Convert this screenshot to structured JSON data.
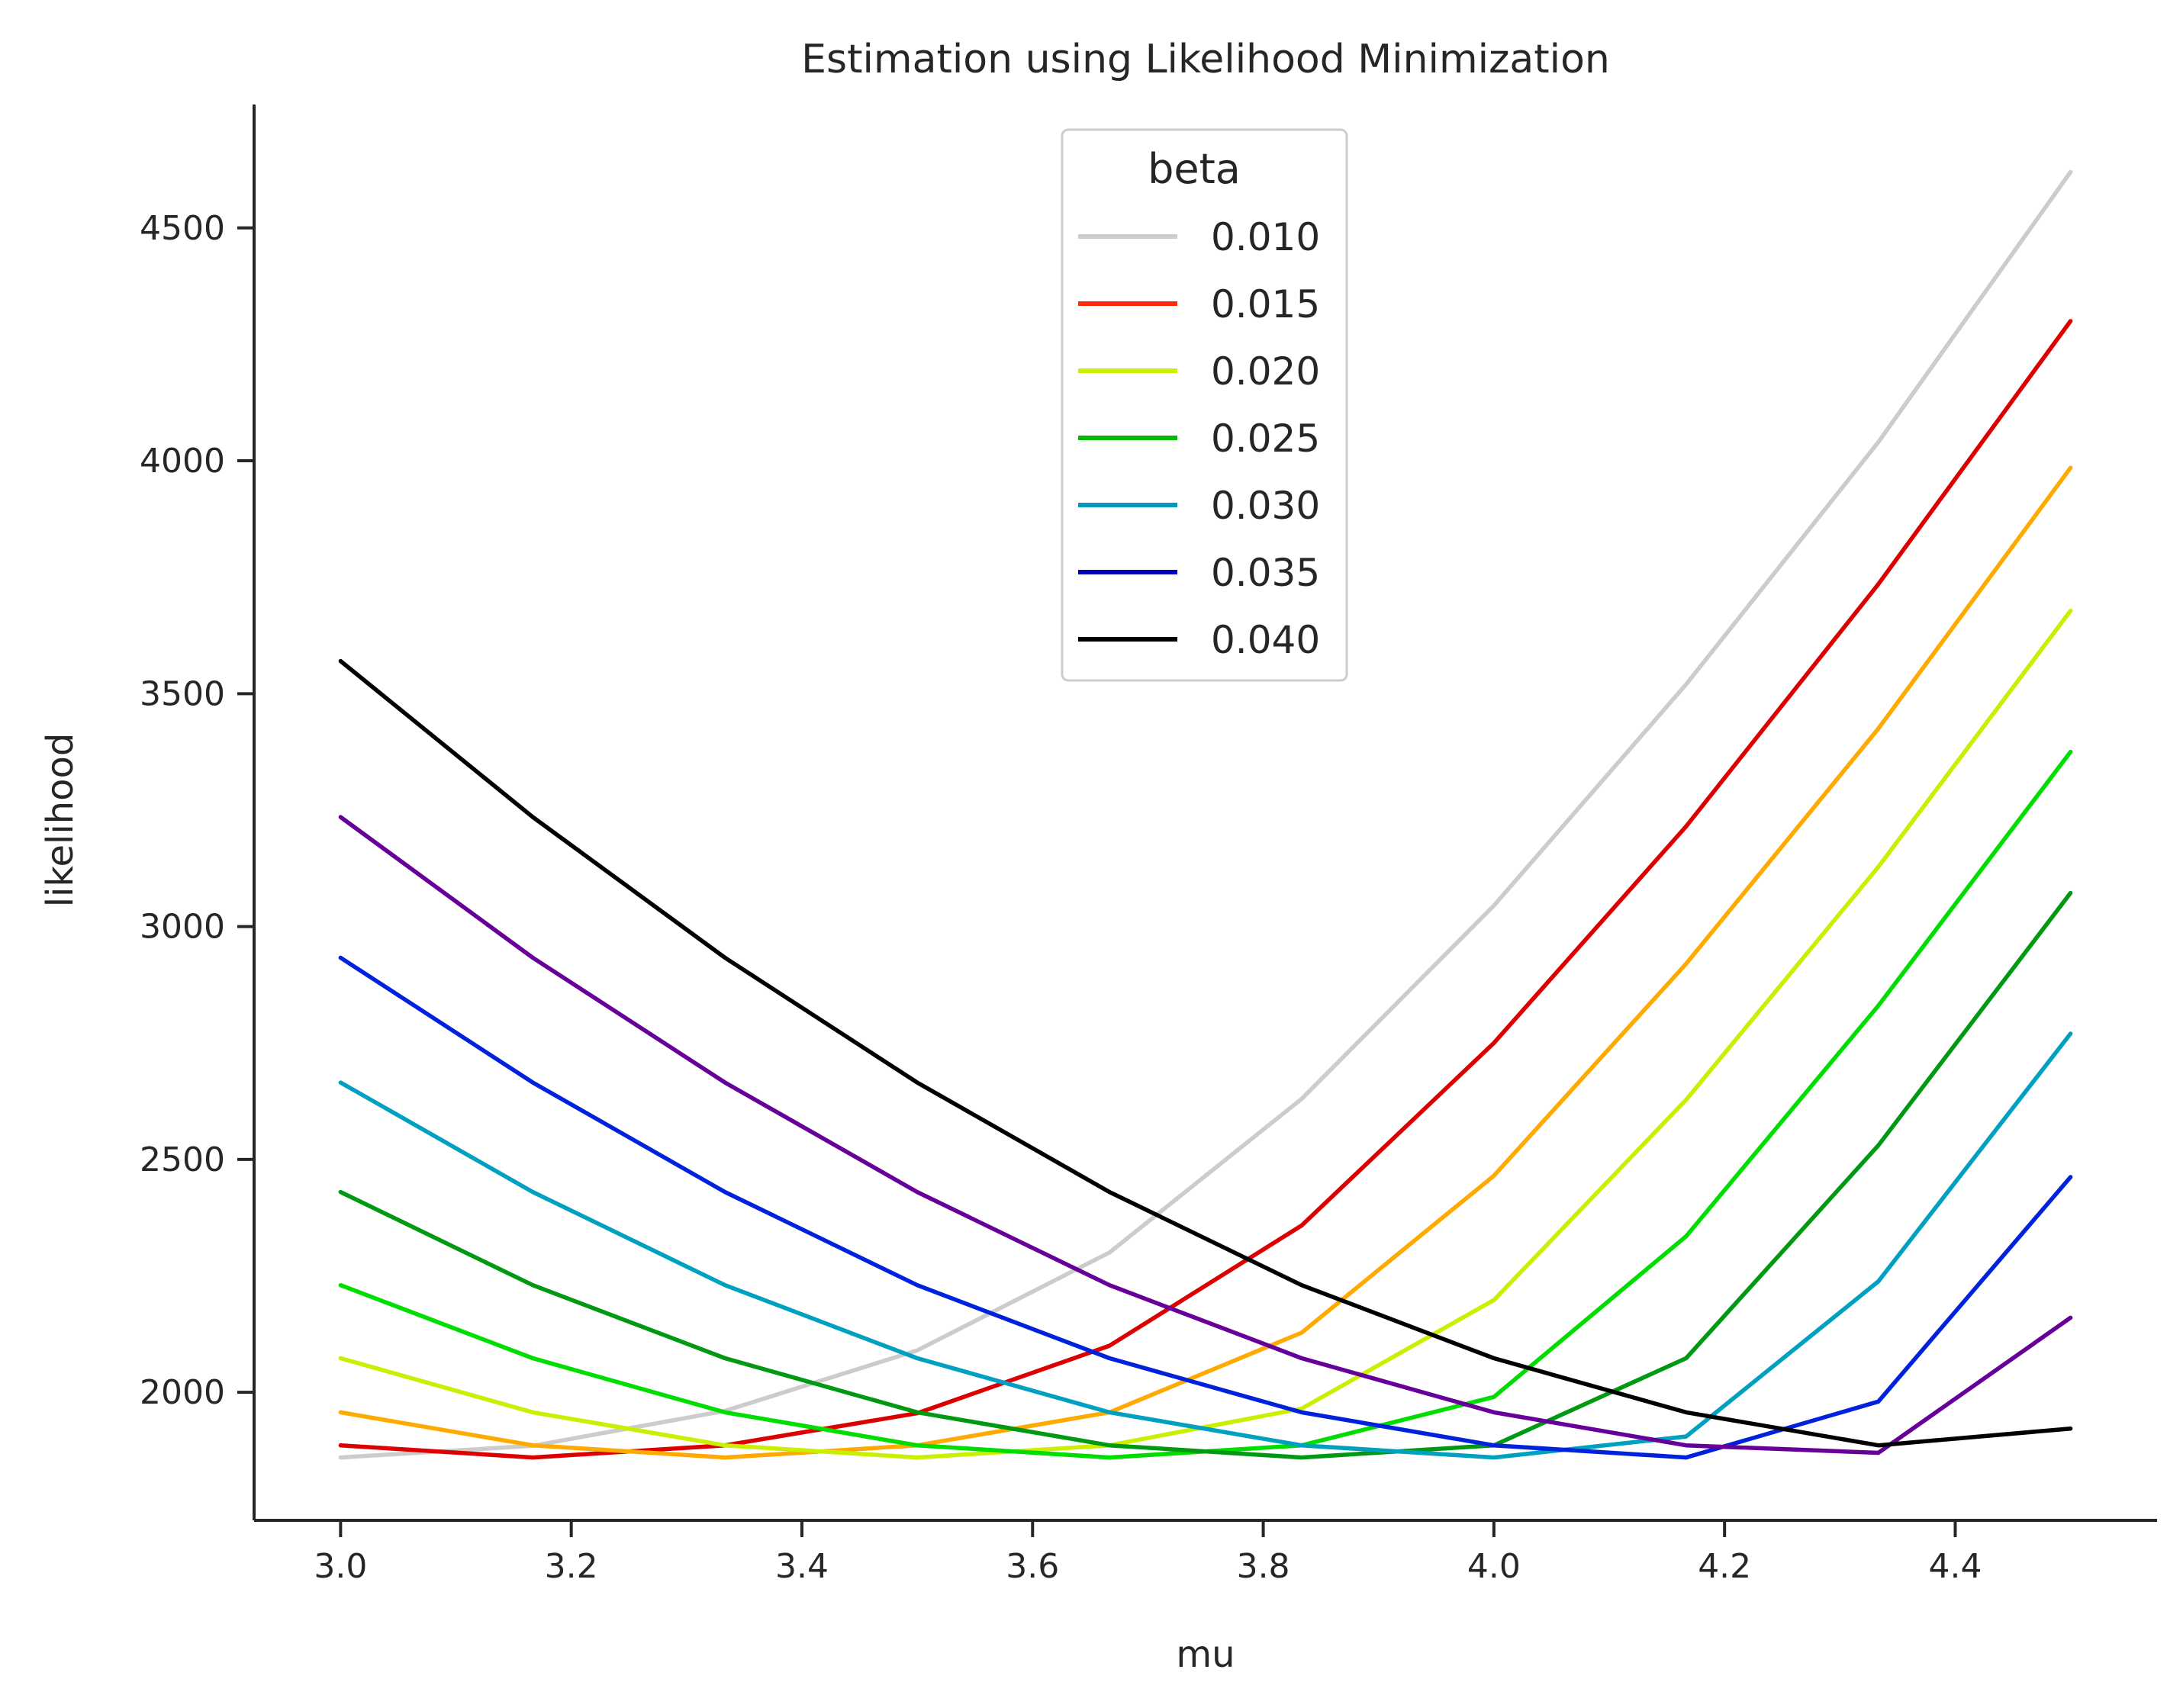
{
  "chart_data": {
    "type": "line",
    "title": "Estimation using Likelihood Minimization",
    "xlabel": "mu",
    "ylabel": "likelihood",
    "xlim": [
      2.925,
      4.575
    ],
    "ylim": [
      1725,
      4765
    ],
    "x_ticks": [
      "3.0",
      "3.2",
      "3.4",
      "3.6",
      "3.8",
      "4.0",
      "4.2",
      "4.4"
    ],
    "y_ticks": [
      "2000",
      "2500",
      "3000",
      "3500",
      "4000",
      "4500"
    ],
    "grid": false,
    "legend": {
      "title": "beta",
      "position": "top-center",
      "entries": [
        {
          "label": "0.010",
          "color": "#cccccc"
        },
        {
          "label": "0.015",
          "color": "#ff2a0a"
        },
        {
          "label": "0.020",
          "color": "#ccf000"
        },
        {
          "label": "0.025",
          "color": "#00bb00"
        },
        {
          "label": "0.030",
          "color": "#0099bb"
        },
        {
          "label": "0.035",
          "color": "#0000bb"
        },
        {
          "label": "0.040",
          "color": "#000000"
        }
      ]
    },
    "x": [
      3.0,
      3.1667,
      3.3333,
      3.5,
      3.6667,
      3.8333,
      4.0,
      4.1667,
      4.3333,
      4.5
    ],
    "series": [
      {
        "color": "#cccccc",
        "values": [
          1860,
          1885,
          1960,
          2090,
          2300,
          2630,
          3045,
          3520,
          4040,
          4620
        ]
      },
      {
        "color": "#dd0000",
        "values": [
          1886,
          1860,
          1886,
          1955,
          2100,
          2358,
          2750,
          3215,
          3735,
          4300
        ]
      },
      {
        "color": "#ffaa00",
        "values": [
          1957,
          1886,
          1860,
          1886,
          1957,
          2128,
          2465,
          2920,
          3425,
          3985
        ]
      },
      {
        "color": "#ccee00",
        "values": [
          2073,
          1957,
          1886,
          1860,
          1886,
          1965,
          2198,
          2628,
          3128,
          3678
        ]
      },
      {
        "color": "#00dd00",
        "values": [
          2230,
          2073,
          1957,
          1886,
          1860,
          1886,
          1990,
          2335,
          2830,
          3375
        ]
      },
      {
        "color": "#009911",
        "values": [
          2430,
          2230,
          2073,
          1957,
          1886,
          1860,
          1886,
          2073,
          2530,
          3072
        ]
      },
      {
        "color": "#00a0c0",
        "values": [
          2665,
          2430,
          2230,
          2073,
          1957,
          1886,
          1860,
          1905,
          2238,
          2770
        ]
      },
      {
        "color": "#0022dd",
        "values": [
          2933,
          2665,
          2430,
          2230,
          2073,
          1957,
          1886,
          1860,
          1980,
          2462
        ]
      },
      {
        "color": "#660099",
        "values": [
          3235,
          2933,
          2665,
          2430,
          2230,
          2073,
          1957,
          1886,
          1870,
          2160
        ]
      },
      {
        "color": "#000000",
        "values": [
          3570,
          3235,
          2933,
          2665,
          2430,
          2230,
          2073,
          1957,
          1886,
          1922
        ]
      }
    ]
  }
}
